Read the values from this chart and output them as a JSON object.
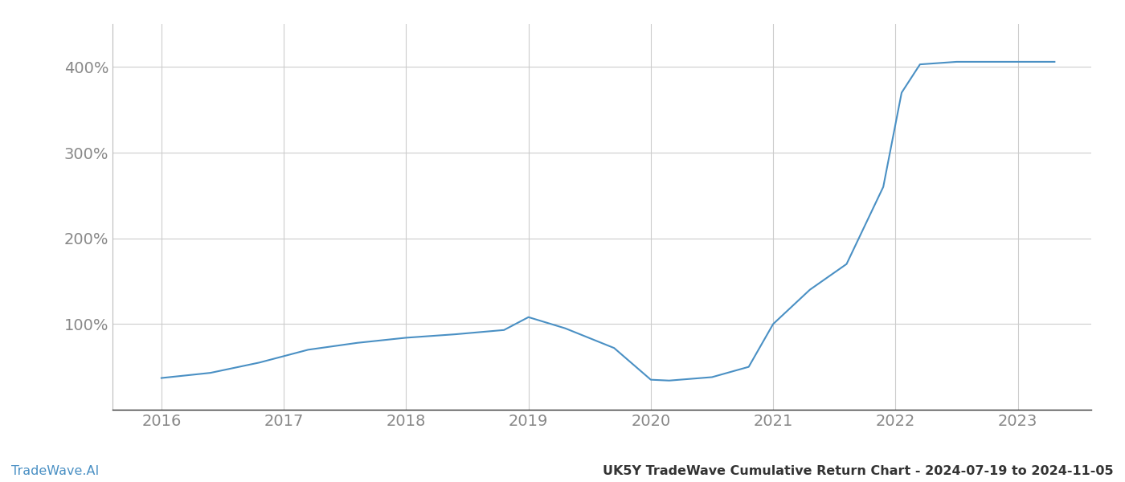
{
  "x_years": [
    2016.0,
    2016.4,
    2016.8,
    2017.2,
    2017.6,
    2018.0,
    2018.4,
    2018.8,
    2019.0,
    2019.3,
    2019.7,
    2020.0,
    2020.15,
    2020.5,
    2020.8,
    2021.0,
    2021.3,
    2021.6,
    2021.9,
    2022.05,
    2022.2,
    2022.5,
    2022.8,
    2023.0,
    2023.3
  ],
  "y_values": [
    37,
    43,
    55,
    70,
    78,
    84,
    88,
    93,
    108,
    95,
    72,
    35,
    34,
    38,
    50,
    100,
    140,
    170,
    260,
    370,
    403,
    406,
    406,
    406,
    406
  ],
  "line_color": "#4a90c4",
  "line_width": 1.5,
  "background_color": "#ffffff",
  "grid_color": "#cccccc",
  "tick_color": "#888888",
  "ytick_labels": [
    "100%",
    "200%",
    "300%",
    "400%"
  ],
  "ytick_values": [
    100,
    200,
    300,
    400
  ],
  "xtick_labels": [
    "2016",
    "2017",
    "2018",
    "2019",
    "2020",
    "2021",
    "2022",
    "2023"
  ],
  "xtick_values": [
    2016,
    2017,
    2018,
    2019,
    2020,
    2021,
    2022,
    2023
  ],
  "xlim": [
    2015.6,
    2023.6
  ],
  "ylim": [
    0,
    450
  ],
  "tick_fontsize": 14,
  "footer_left": "TradeWave.AI",
  "footer_right": "UK5Y TradeWave Cumulative Return Chart - 2024-07-19 to 2024-11-05",
  "footer_left_color": "#4a90c4",
  "footer_right_color": "#333333",
  "footer_fontsize": 11.5
}
